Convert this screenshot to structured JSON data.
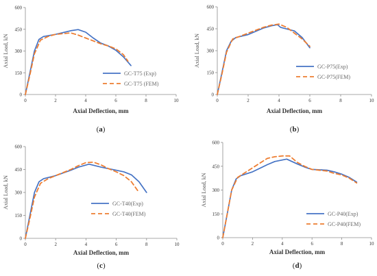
{
  "chart_data": [
    {
      "type": "line",
      "panel_label": "a",
      "xlabel": "Axial Deflection, mm",
      "ylabel": "Axial Load, kN",
      "xlim": [
        0,
        10
      ],
      "ylim": [
        0,
        600
      ],
      "x_ticks": [
        0,
        2,
        4,
        6,
        8,
        10
      ],
      "y_ticks": [
        0,
        150,
        300,
        450,
        600
      ],
      "grid": false,
      "legend_position": "bottom-right",
      "series": [
        {
          "name": "GC-T75 (Exp)",
          "color": "#4472c4",
          "style": "solid",
          "points": [
            [
              0,
              0
            ],
            [
              0.3,
              150
            ],
            [
              0.6,
              300
            ],
            [
              0.9,
              380
            ],
            [
              1.2,
              400
            ],
            [
              2,
              415
            ],
            [
              3,
              440
            ],
            [
              3.5,
              448
            ],
            [
              4,
              430
            ],
            [
              4.5,
              390
            ],
            [
              5,
              355
            ],
            [
              5.5,
              335
            ],
            [
              6,
              305
            ],
            [
              6.5,
              260
            ],
            [
              7,
              200
            ]
          ]
        },
        {
          "name": "GC-T75 (FEM)",
          "color": "#ed7d31",
          "style": "dashed",
          "points": [
            [
              0,
              0
            ],
            [
              0.3,
              135
            ],
            [
              0.6,
              280
            ],
            [
              1,
              375
            ],
            [
              1.5,
              400
            ],
            [
              2,
              415
            ],
            [
              2.5,
              420
            ],
            [
              3,
              425
            ],
            [
              3.5,
              410
            ],
            [
              4,
              390
            ],
            [
              4.5,
              370
            ],
            [
              5,
              350
            ],
            [
              5.5,
              335
            ],
            [
              6,
              315
            ],
            [
              6.5,
              275
            ],
            [
              6.8,
              230
            ]
          ]
        }
      ]
    },
    {
      "type": "line",
      "panel_label": "b",
      "xlabel": "Axial Deflection, mm",
      "ylabel": "Axial Load, kN",
      "xlim": [
        0,
        10
      ],
      "ylim": [
        0,
        600
      ],
      "x_ticks": [
        0,
        2,
        4,
        6,
        8,
        10
      ],
      "y_ticks": [
        0,
        150,
        300,
        450,
        600
      ],
      "grid": false,
      "legend_position": "center-right",
      "series": [
        {
          "name": "GC-P75(Exp)",
          "color": "#4472c4",
          "style": "solid",
          "points": [
            [
              0,
              0
            ],
            [
              0.3,
              150
            ],
            [
              0.6,
              300
            ],
            [
              0.9,
              365
            ],
            [
              1.2,
              390
            ],
            [
              2,
              410
            ],
            [
              3,
              455
            ],
            [
              3.5,
              470
            ],
            [
              3.9,
              478
            ],
            [
              4.1,
              460
            ],
            [
              5,
              435
            ],
            [
              5.5,
              390
            ],
            [
              6,
              320
            ]
          ]
        },
        {
          "name": "GC-P75(FEM)",
          "color": "#ed7d31",
          "style": "dashed",
          "points": [
            [
              0,
              0
            ],
            [
              0.3,
              140
            ],
            [
              0.6,
              290
            ],
            [
              1,
              380
            ],
            [
              1.5,
              400
            ],
            [
              2,
              420
            ],
            [
              2.5,
              440
            ],
            [
              3,
              460
            ],
            [
              3.5,
              475
            ],
            [
              4,
              482
            ],
            [
              4.5,
              460
            ],
            [
              5,
              420
            ],
            [
              5.5,
              380
            ],
            [
              6,
              330
            ]
          ]
        }
      ]
    },
    {
      "type": "line",
      "panel_label": "c",
      "xlabel": "Axial Deflection, mm",
      "ylabel": "Axial Load, kN",
      "xlim": [
        0,
        10
      ],
      "ylim": [
        0,
        600
      ],
      "x_ticks": [
        0,
        2,
        4,
        6,
        8,
        10
      ],
      "y_ticks": [
        0,
        150,
        300,
        450,
        600
      ],
      "grid": false,
      "legend_position": "bottom-right",
      "series": [
        {
          "name": "GC-T40(Exp)",
          "color": "#4472c4",
          "style": "solid",
          "points": [
            [
              0,
              0
            ],
            [
              0.3,
              150
            ],
            [
              0.6,
              300
            ],
            [
              0.9,
              370
            ],
            [
              1.2,
              390
            ],
            [
              2,
              410
            ],
            [
              3,
              445
            ],
            [
              3.5,
              465
            ],
            [
              4.2,
              485
            ],
            [
              5,
              465
            ],
            [
              6,
              445
            ],
            [
              6.5,
              435
            ],
            [
              7,
              415
            ],
            [
              7.5,
              370
            ],
            [
              8,
              300
            ]
          ]
        },
        {
          "name": "GC-T40(FEM)",
          "color": "#ed7d31",
          "style": "dashed",
          "points": [
            [
              0,
              0
            ],
            [
              0.3,
              130
            ],
            [
              0.6,
              270
            ],
            [
              1,
              360
            ],
            [
              1.5,
              390
            ],
            [
              2,
              410
            ],
            [
              3,
              450
            ],
            [
              3.5,
              475
            ],
            [
              4,
              495
            ],
            [
              4.5,
              498
            ],
            [
              5,
              480
            ],
            [
              5.5,
              455
            ],
            [
              6,
              435
            ],
            [
              6.5,
              410
            ],
            [
              7,
              370
            ],
            [
              7.5,
              300
            ]
          ]
        }
      ]
    },
    {
      "type": "line",
      "panel_label": "d",
      "xlabel": "Axial Deflection, mm",
      "ylabel": "Axial Load, kN",
      "xlim": [
        0,
        10
      ],
      "ylim": [
        0,
        600
      ],
      "x_ticks": [
        0,
        2,
        4,
        6,
        8,
        10
      ],
      "y_ticks": [
        0,
        150,
        300,
        450,
        600
      ],
      "grid": false,
      "legend_position": "bottom-right",
      "series": [
        {
          "name": "GC-P40(Exp)",
          "color": "#4472c4",
          "style": "solid",
          "points": [
            [
              0,
              0
            ],
            [
              0.3,
              150
            ],
            [
              0.6,
              300
            ],
            [
              0.9,
              370
            ],
            [
              1.2,
              390
            ],
            [
              2,
              415
            ],
            [
              3,
              460
            ],
            [
              3.5,
              480
            ],
            [
              4.3,
              495
            ],
            [
              5,
              465
            ],
            [
              5.5,
              445
            ],
            [
              6,
              430
            ],
            [
              7,
              425
            ],
            [
              7.5,
              415
            ],
            [
              8,
              400
            ],
            [
              8.5,
              380
            ],
            [
              9,
              350
            ]
          ]
        },
        {
          "name": "GC-P40(FEM)",
          "color": "#ed7d31",
          "style": "dashed",
          "points": [
            [
              0,
              0
            ],
            [
              0.3,
              150
            ],
            [
              0.6,
              300
            ],
            [
              1,
              380
            ],
            [
              1.5,
              410
            ],
            [
              2,
              440
            ],
            [
              2.5,
              470
            ],
            [
              3,
              500
            ],
            [
              3.5,
              510
            ],
            [
              4,
              515
            ],
            [
              4.5,
              515
            ],
            [
              5,
              475
            ],
            [
              5.5,
              450
            ],
            [
              6,
              430
            ],
            [
              7,
              420
            ],
            [
              7.5,
              405
            ],
            [
              8,
              395
            ],
            [
              8.5,
              375
            ],
            [
              9,
              345
            ]
          ]
        }
      ]
    }
  ]
}
